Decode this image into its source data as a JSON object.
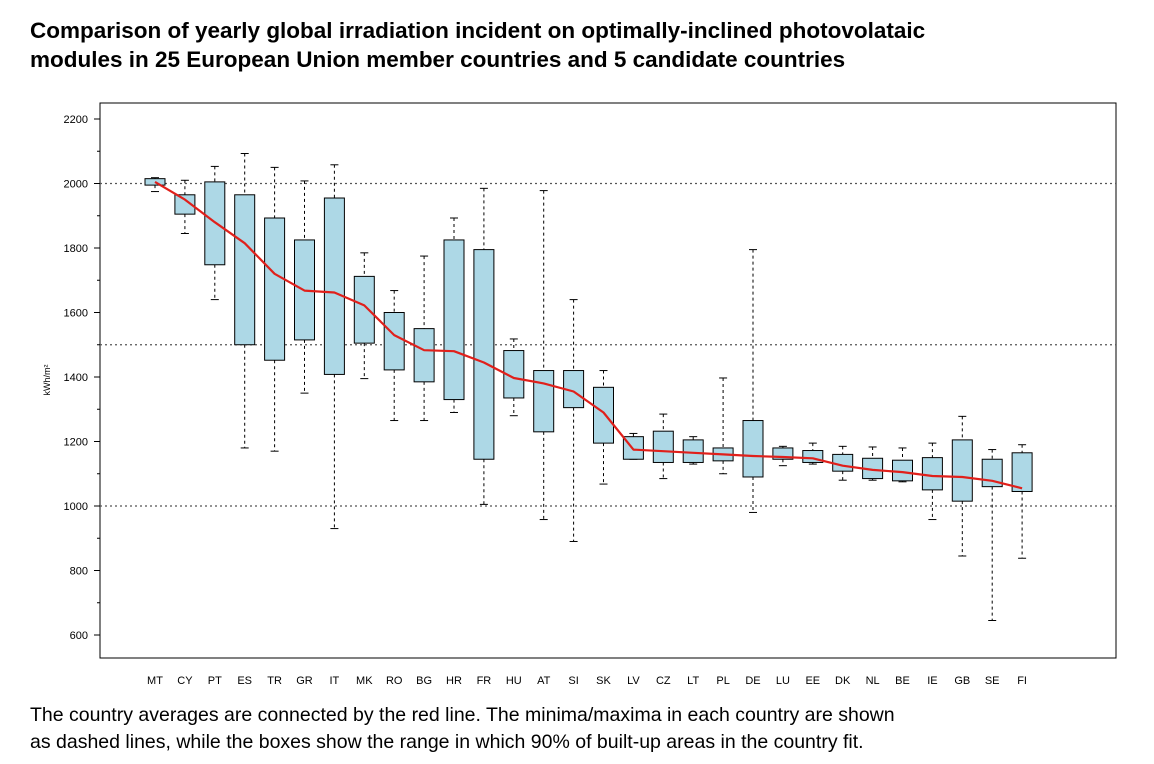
{
  "title": {
    "line1": "Comparison of yearly global irradiation incident on optimally-inclined photovolataic",
    "line2": "modules in 25 European Union member countries and 5 candidate countries"
  },
  "caption": {
    "line1": "The country averages are connected by the red line. The minima/maxima in each country are shown",
    "line2": "as dashed lines, while the boxes show the range in which 90% of built-up areas in the country fit."
  },
  "colors": {
    "box_fill": "#add8e6",
    "mean_line": "#e0201b",
    "grid": "#555555"
  },
  "chart_data": {
    "type": "boxplot",
    "ylabel": "kWh/m²",
    "ylim": [
      550,
      2250
    ],
    "yticks": [
      600,
      800,
      1000,
      1200,
      1400,
      1600,
      1800,
      2000,
      2200
    ],
    "gridlines": [
      1000,
      1500,
      2000
    ],
    "categories": [
      "MT",
      "CY",
      "PT",
      "ES",
      "TR",
      "GR",
      "IT",
      "MK",
      "RO",
      "BG",
      "HR",
      "FR",
      "HU",
      "AT",
      "SI",
      "SK",
      "LV",
      "CZ",
      "LT",
      "PL",
      "DE",
      "LU",
      "EE",
      "DK",
      "NL",
      "BE",
      "IE",
      "GB",
      "SE",
      "FI"
    ],
    "series": [
      {
        "min": 1975,
        "q_low": 1995,
        "q_high": 2015,
        "max": 2018,
        "mean": 2005
      },
      {
        "min": 1845,
        "q_low": 1905,
        "q_high": 1965,
        "max": 2010,
        "mean": 1950
      },
      {
        "min": 1640,
        "q_low": 1748,
        "q_high": 2005,
        "max": 2053,
        "mean": 1880
      },
      {
        "min": 1180,
        "q_low": 1500,
        "q_high": 1965,
        "max": 2093,
        "mean": 1815
      },
      {
        "min": 1170,
        "q_low": 1452,
        "q_high": 1893,
        "max": 2050,
        "mean": 1720
      },
      {
        "min": 1350,
        "q_low": 1515,
        "q_high": 1825,
        "max": 2008,
        "mean": 1668
      },
      {
        "min": 930,
        "q_low": 1408,
        "q_high": 1955,
        "max": 2058,
        "mean": 1662
      },
      {
        "min": 1395,
        "q_low": 1505,
        "q_high": 1712,
        "max": 1785,
        "mean": 1622
      },
      {
        "min": 1265,
        "q_low": 1422,
        "q_high": 1600,
        "max": 1668,
        "mean": 1530
      },
      {
        "min": 1265,
        "q_low": 1385,
        "q_high": 1550,
        "max": 1775,
        "mean": 1483
      },
      {
        "min": 1290,
        "q_low": 1330,
        "q_high": 1825,
        "max": 1893,
        "mean": 1480
      },
      {
        "min": 1005,
        "q_low": 1145,
        "q_high": 1795,
        "max": 1985,
        "mean": 1445
      },
      {
        "min": 1280,
        "q_low": 1335,
        "q_high": 1482,
        "max": 1518,
        "mean": 1397
      },
      {
        "min": 958,
        "q_low": 1230,
        "q_high": 1420,
        "max": 1978,
        "mean": 1380
      },
      {
        "min": 890,
        "q_low": 1305,
        "q_high": 1420,
        "max": 1640,
        "mean": 1355
      },
      {
        "min": 1068,
        "q_low": 1195,
        "q_high": 1368,
        "max": 1420,
        "mean": 1290
      },
      {
        "min": 1145,
        "q_low": 1145,
        "q_high": 1215,
        "max": 1225,
        "mean": 1175
      },
      {
        "min": 1085,
        "q_low": 1135,
        "q_high": 1232,
        "max": 1285,
        "mean": 1170
      },
      {
        "min": 1130,
        "q_low": 1135,
        "q_high": 1205,
        "max": 1215,
        "mean": 1165
      },
      {
        "min": 1100,
        "q_low": 1140,
        "q_high": 1180,
        "max": 1397,
        "mean": 1160
      },
      {
        "min": 980,
        "q_low": 1090,
        "q_high": 1265,
        "max": 1795,
        "mean": 1155
      },
      {
        "min": 1125,
        "q_low": 1145,
        "q_high": 1180,
        "max": 1185,
        "mean": 1152
      },
      {
        "min": 1130,
        "q_low": 1135,
        "q_high": 1172,
        "max": 1195,
        "mean": 1148
      },
      {
        "min": 1080,
        "q_low": 1108,
        "q_high": 1160,
        "max": 1185,
        "mean": 1125
      },
      {
        "min": 1080,
        "q_low": 1085,
        "q_high": 1148,
        "max": 1183,
        "mean": 1112
      },
      {
        "min": 1075,
        "q_low": 1078,
        "q_high": 1142,
        "max": 1180,
        "mean": 1105
      },
      {
        "min": 958,
        "q_low": 1050,
        "q_high": 1150,
        "max": 1195,
        "mean": 1093
      },
      {
        "min": 845,
        "q_low": 1015,
        "q_high": 1205,
        "max": 1278,
        "mean": 1090
      },
      {
        "min": 645,
        "q_low": 1060,
        "q_high": 1145,
        "max": 1175,
        "mean": 1078
      },
      {
        "min": 838,
        "q_low": 1045,
        "q_high": 1165,
        "max": 1190,
        "mean": 1055
      }
    ]
  }
}
